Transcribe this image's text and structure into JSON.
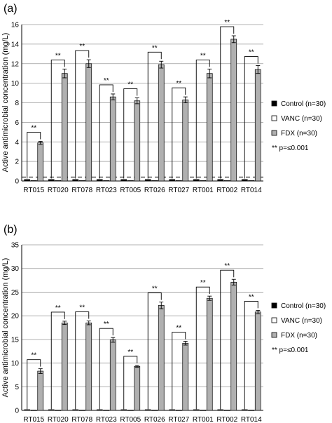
{
  "chart_data": [
    {
      "panel_label": "(a)",
      "type": "bar",
      "ylabel": "Active antimicrobial concentration (mg/L)",
      "ylim": [
        0,
        16
      ],
      "yticks": [
        0,
        2,
        4,
        6,
        8,
        10,
        12,
        14,
        16
      ],
      "grid": true,
      "legend_position": "right",
      "categories": [
        "RT015",
        "RT020",
        "RT078",
        "RT023",
        "RT005",
        "RT026",
        "RT027",
        "RT001",
        "RT002",
        "RT014"
      ],
      "series": [
        {
          "name": "Control (n=30)",
          "color": "#000000",
          "values": [
            0.15,
            0.15,
            0.15,
            0.15,
            0.15,
            0.15,
            0.15,
            0.15,
            0.15,
            0.15
          ]
        },
        {
          "name": "VANC (n=30)",
          "color": "#ffffff",
          "values": [
            0.05,
            0.05,
            0.05,
            0.05,
            0.05,
            0.05,
            0.05,
            0.05,
            0.05,
            0.05
          ]
        },
        {
          "name": "FDX (n=30)",
          "color": "#b0b0b0",
          "values": [
            3.9,
            11.0,
            12.0,
            8.6,
            8.2,
            11.9,
            8.3,
            11.0,
            14.5,
            11.4
          ],
          "errors": [
            0.15,
            0.45,
            0.4,
            0.3,
            0.3,
            0.35,
            0.3,
            0.45,
            0.35,
            0.4
          ]
        }
      ],
      "threshold_line": 0.4,
      "significance_label": "**",
      "legend_note": "** p=≤0.001"
    },
    {
      "panel_label": "(b)",
      "type": "bar",
      "ylabel": "Active antimicrobial concentration (mg/L)",
      "ylim": [
        0,
        35
      ],
      "yticks": [
        0,
        5,
        10,
        15,
        20,
        25,
        30,
        35
      ],
      "grid": true,
      "legend_position": "right",
      "categories": [
        "RT015",
        "RT020",
        "RT078",
        "RT023",
        "RT005",
        "RT026",
        "RT027",
        "RT001",
        "RT002",
        "RT014"
      ],
      "series": [
        {
          "name": "Control (n=30)",
          "color": "#000000",
          "values": [
            0.15,
            0.15,
            0.15,
            0.15,
            0.15,
            0.15,
            0.15,
            0.15,
            0.15,
            0.15
          ]
        },
        {
          "name": "VANC (n=30)",
          "color": "#ffffff",
          "values": [
            0.05,
            0.05,
            0.05,
            0.05,
            0.05,
            0.05,
            0.05,
            0.05,
            0.05,
            0.05
          ]
        },
        {
          "name": "FDX (n=30)",
          "color": "#b0b0b0",
          "values": [
            8.3,
            18.5,
            18.5,
            14.9,
            9.3,
            22.2,
            14.2,
            23.7,
            27.1,
            20.8
          ],
          "errors": [
            0.5,
            0.35,
            0.4,
            0.5,
            0.2,
            0.7,
            0.4,
            0.45,
            0.6,
            0.35
          ]
        }
      ],
      "significance_label": "**",
      "legend_note": "** p=≤0.001"
    }
  ]
}
